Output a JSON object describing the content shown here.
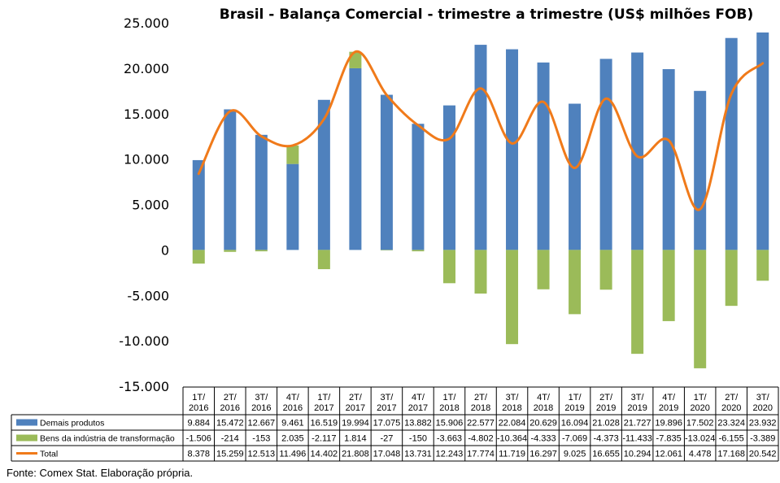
{
  "source": "Fonte: Comex Stat. Elaboração própria.",
  "chart_data": {
    "type": "bar",
    "title": "Brasil - Balança Comercial - trimestre a trimestre (US$ milhões FOB)",
    "categories": [
      [
        "1T/",
        "2016"
      ],
      [
        "2T/",
        "2016"
      ],
      [
        "3T/",
        "2016"
      ],
      [
        "4T/",
        "2016"
      ],
      [
        "1T/",
        "2017"
      ],
      [
        "2T/",
        "2017"
      ],
      [
        "3T/",
        "2017"
      ],
      [
        "4T/",
        "2017"
      ],
      [
        "1T/",
        "2018"
      ],
      [
        "2T/",
        "2018"
      ],
      [
        "3T/",
        "2018"
      ],
      [
        "4T/",
        "2018"
      ],
      [
        "1T/",
        "2019"
      ],
      [
        "2T/",
        "2019"
      ],
      [
        "3T/",
        "2019"
      ],
      [
        "4T/",
        "2019"
      ],
      [
        "1T/",
        "2020"
      ],
      [
        "2T/",
        "2020"
      ],
      [
        "3T/",
        "2020"
      ]
    ],
    "ylim": [
      -15000,
      25000
    ],
    "yticks": [
      -15000,
      -10000,
      -5000,
      0,
      5000,
      10000,
      15000,
      20000,
      25000
    ],
    "ytick_labels": [
      "-15.000",
      "-10.000",
      "-5.000",
      "0",
      "5.000",
      "10.000",
      "15.000",
      "20.000",
      "25.000"
    ],
    "stacked": true,
    "grid": false,
    "legend": "table-below",
    "series": [
      {
        "name": "Demais produtos",
        "type": "bar",
        "color": "#4F81BD",
        "values": [
          9884,
          15472,
          12667,
          9461,
          16519,
          19994,
          17075,
          13882,
          15906,
          22577,
          22084,
          20629,
          16094,
          21028,
          21727,
          19896,
          17502,
          23324,
          23932
        ],
        "labels": [
          "9.884",
          "15.472",
          "12.667",
          "9.461",
          "16.519",
          "19.994",
          "17.075",
          "13.882",
          "15.906",
          "22.577",
          "22.084",
          "20.629",
          "16.094",
          "21.028",
          "21.727",
          "19.896",
          "17.502",
          "23.324",
          "23.932"
        ]
      },
      {
        "name": "Bens da indústria de transformação",
        "type": "bar",
        "color": "#9BBB59",
        "values": [
          -1506,
          -214,
          -153,
          2035,
          -2117,
          1814,
          -27,
          -150,
          -3663,
          -4802,
          -10364,
          -4333,
          -7069,
          -4373,
          -11433,
          -7835,
          -13024,
          -6155,
          -3389
        ],
        "labels": [
          "-1.506",
          "-214",
          "-153",
          "2.035",
          "-2.117",
          "1.814",
          "-27",
          "-150",
          "-3.663",
          "-4.802",
          "-10.364",
          "-4.333",
          "-7.069",
          "-4.373",
          "-11.433",
          "-7.835",
          "-13.024",
          "-6.155",
          "-3.389"
        ]
      },
      {
        "name": "Total",
        "type": "line",
        "color": "#F07A1A",
        "values": [
          8378,
          15259,
          12513,
          11496,
          14402,
          21808,
          17048,
          13731,
          12243,
          17774,
          11719,
          16297,
          9025,
          16655,
          10294,
          12061,
          4478,
          17168,
          20542
        ],
        "labels": [
          "8.378",
          "15.259",
          "12.513",
          "11.496",
          "14.402",
          "21.808",
          "17.048",
          "13.731",
          "12.243",
          "17.774",
          "11.719",
          "16.297",
          "9.025",
          "16.655",
          "10.294",
          "12.061",
          "4.478",
          "17.168",
          "20.542"
        ]
      }
    ]
  }
}
